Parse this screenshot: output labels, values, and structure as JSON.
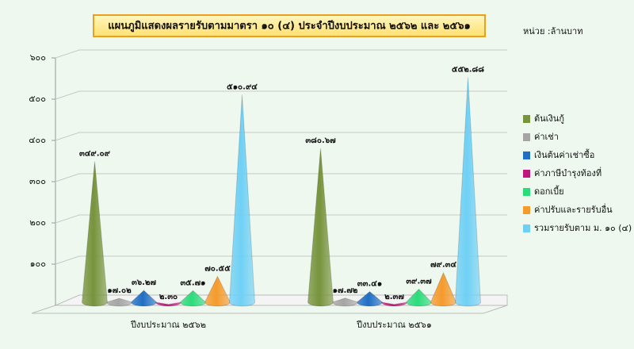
{
  "chart_data": {
    "type": "cone",
    "title": "แผนภูมิแสดงผลรายรับตามมาตรา ๑๐ (๔) ประจำปีงบประมาณ ๒๕๖๒ และ ๒๕๖๑",
    "unit": "หน่วย :ล้านบาท",
    "categories": [
      "ปีงบประมาณ ๒๕๖๒",
      "ปีงบประมาณ ๒๕๖๑"
    ],
    "series": [
      {
        "name": "ต้นเงินกู้",
        "color": "#77933c",
        "values": [
          349.09,
          380.67
        ],
        "value_labels": [
          "๓๔๙.๐๙",
          "๓๘๐.๖๗"
        ]
      },
      {
        "name": "ค่าเช่า",
        "color": "#a5a5a5",
        "values": [
          17.02,
          17.72
        ],
        "value_labels": [
          "๑๗.๐๒",
          "๑๗.๗๒"
        ]
      },
      {
        "name": "เงินต้นค่าเช่าซื้อ",
        "color": "#1f6fc5",
        "values": [
          36.27,
          33.41
        ],
        "value_labels": [
          "๓๖.๒๗",
          "๓๓.๔๑"
        ]
      },
      {
        "name": "ค่าภาษีบำรุงท้องที่",
        "color": "#c0187a",
        "values": [
          2.3,
          2.37
        ],
        "value_labels": [
          "๒.๓๐",
          "๒.๓๗"
        ]
      },
      {
        "name": "ดอกเบี้ย",
        "color": "#2bdc7a",
        "values": [
          35.71,
          39.37
        ],
        "value_labels": [
          "๓๕.๗๑",
          "๓๙.๓๗"
        ]
      },
      {
        "name": "ค่าปรับและรายรับอื่น",
        "color": "#f59a2c",
        "values": [
          70.55,
          79.34
        ],
        "value_labels": [
          "๗๐.๕๕",
          "๗๙.๓๔"
        ]
      },
      {
        "name": "รวมรายรับตาม ม. ๑๐ (๔)",
        "color": "#6fd0f5",
        "values": [
          510.94,
          552.88
        ],
        "value_labels": [
          "๕๑๐.๙๔",
          "๕๕๒.๘๘"
        ]
      }
    ],
    "ylim": [
      0,
      600
    ],
    "yticks": [
      {
        "value": 100,
        "label": "๑๐๐"
      },
      {
        "value": 200,
        "label": "๒๐๐"
      },
      {
        "value": 300,
        "label": "๓๐๐"
      },
      {
        "value": 400,
        "label": "๔๐๐"
      },
      {
        "value": 500,
        "label": "๕๐๐"
      },
      {
        "value": 600,
        "label": "๖๐๐"
      }
    ],
    "grid": true
  }
}
